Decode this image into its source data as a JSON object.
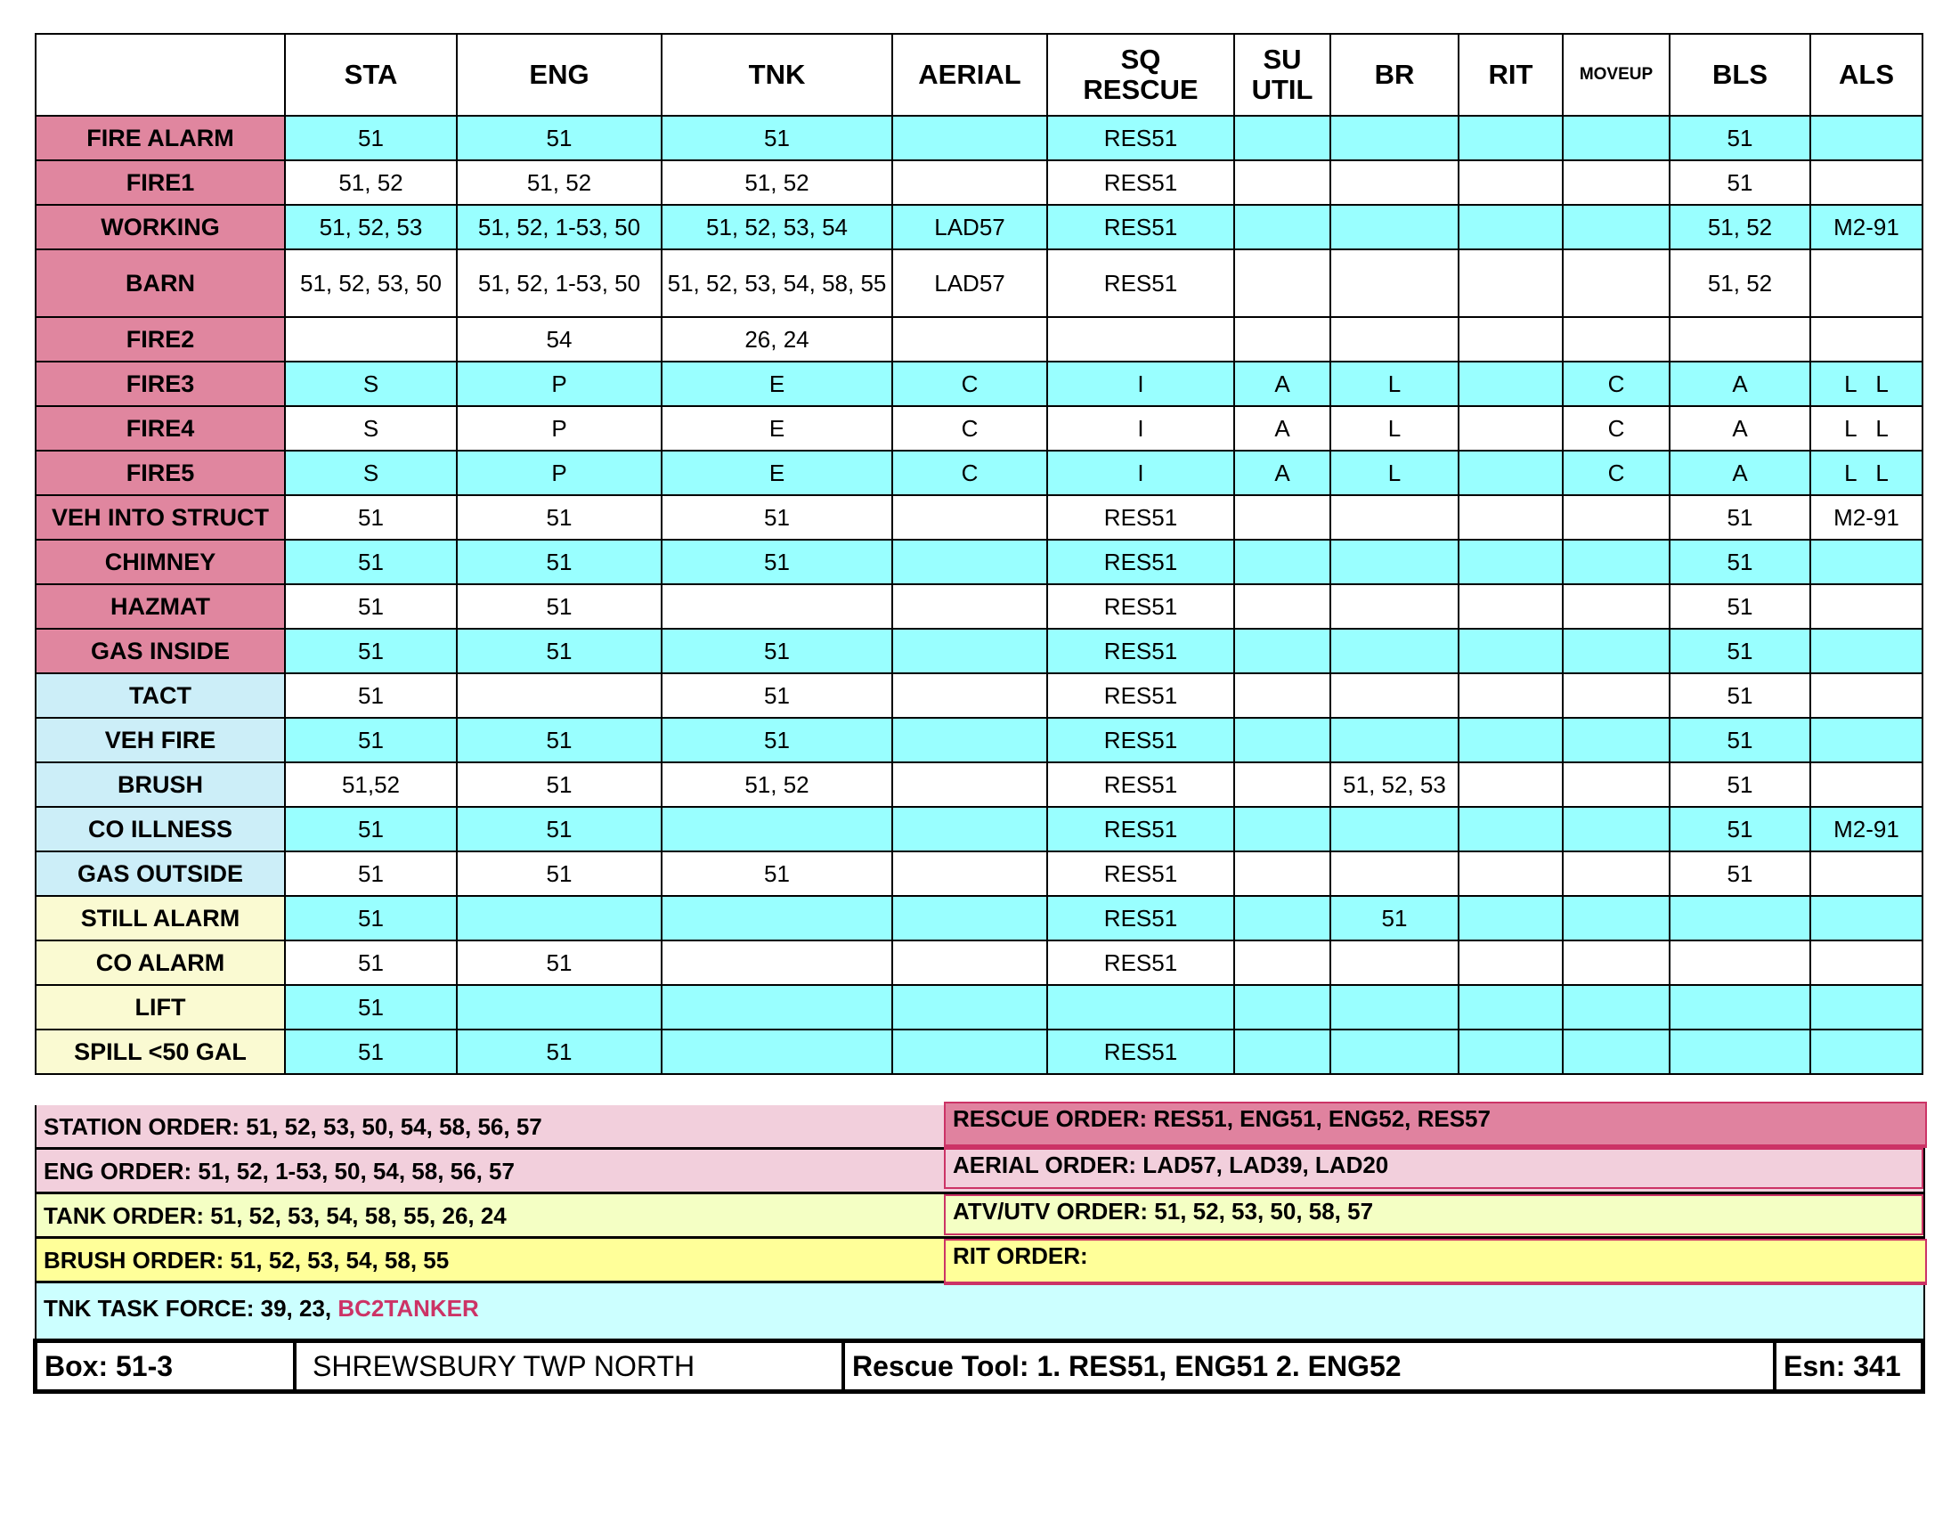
{
  "columns": [
    "",
    "STA",
    "ENG",
    "TNK",
    "AERIAL",
    "SQ\nRESCUE",
    "SU\nUTIL",
    "BR",
    "RIT",
    "MOVEUP",
    "BLS",
    "ALS"
  ],
  "colors": {
    "label_pink": "#e0869f",
    "label_blue": "#cceef8",
    "label_yellow": "#fafad2",
    "row_cyan": "#99ffff",
    "accent_red": "#cc3366"
  },
  "rows": [
    {
      "label": "FIRE ALARM",
      "cat": "pink",
      "bg": "cyan",
      "cells": [
        "51",
        "51",
        "51",
        "",
        "RES51",
        "",
        "",
        "",
        "",
        "51",
        ""
      ]
    },
    {
      "label": "FIRE1",
      "cat": "pink",
      "bg": "white",
      "cells": [
        "51, 52",
        "51, 52",
        "51, 52",
        "",
        "RES51",
        "",
        "",
        "",
        "",
        "51",
        ""
      ]
    },
    {
      "label": "WORKING",
      "cat": "pink",
      "bg": "cyan",
      "cells": [
        "51, 52, 53",
        "51, 52, 1-53, 50",
        "51, 52, 53, 54",
        "LAD57",
        "RES51",
        "",
        "",
        "",
        "",
        "51, 52",
        "M2-91"
      ]
    },
    {
      "label": "BARN",
      "cat": "pink",
      "bg": "white",
      "tall": true,
      "cells": [
        "51, 52, 53, 50",
        "51, 52, 1-53, 50",
        "51, 52, 53, 54, 58, 55",
        "LAD57",
        "RES51",
        "",
        "",
        "",
        "",
        "51, 52",
        ""
      ]
    },
    {
      "label": "FIRE2",
      "cat": "pink",
      "bg": "white",
      "cells": [
        "",
        "54",
        "26, 24",
        "",
        "",
        "",
        "",
        "",
        "",
        "",
        ""
      ]
    },
    {
      "label": "FIRE3",
      "cat": "pink",
      "bg": "cyan",
      "cells": [
        "S",
        "P",
        "E",
        "C",
        "I",
        "A",
        "L",
        "",
        "C",
        "A",
        "L   L"
      ]
    },
    {
      "label": "FIRE4",
      "cat": "pink",
      "bg": "white",
      "cells": [
        "S",
        "P",
        "E",
        "C",
        "I",
        "A",
        "L",
        "",
        "C",
        "A",
        "L   L"
      ]
    },
    {
      "label": "FIRE5",
      "cat": "pink",
      "bg": "cyan",
      "cells": [
        "S",
        "P",
        "E",
        "C",
        "I",
        "A",
        "L",
        "",
        "C",
        "A",
        "L   L"
      ]
    },
    {
      "label": "VEH INTO STRUCT",
      "cat": "pink",
      "bg": "white",
      "cells": [
        "51",
        "51",
        "51",
        "",
        "RES51",
        "",
        "",
        "",
        "",
        "51",
        "M2-91"
      ]
    },
    {
      "label": "CHIMNEY",
      "cat": "pink",
      "bg": "cyan",
      "cells": [
        "51",
        "51",
        "51",
        "",
        "RES51",
        "",
        "",
        "",
        "",
        "51",
        ""
      ]
    },
    {
      "label": "HAZMAT",
      "cat": "pink",
      "bg": "white",
      "cells": [
        "51",
        "51",
        "",
        "",
        "RES51",
        "",
        "",
        "",
        "",
        "51",
        ""
      ]
    },
    {
      "label": "GAS INSIDE",
      "cat": "pink",
      "bg": "cyan",
      "cells": [
        "51",
        "51",
        "51",
        "",
        "RES51",
        "",
        "",
        "",
        "",
        "51",
        ""
      ]
    },
    {
      "label": "TACT",
      "cat": "blue",
      "bg": "white",
      "cells": [
        "51",
        "",
        "51",
        "",
        "RES51",
        "",
        "",
        "",
        "",
        "51",
        ""
      ]
    },
    {
      "label": "VEH FIRE",
      "cat": "blue",
      "bg": "cyan",
      "cells": [
        "51",
        "51",
        "51",
        "",
        "RES51",
        "",
        "",
        "",
        "",
        "51",
        ""
      ]
    },
    {
      "label": "BRUSH",
      "cat": "blue",
      "bg": "white",
      "cells": [
        "51,52",
        "51",
        "51, 52",
        "",
        "RES51",
        "",
        "51, 52, 53",
        "",
        "",
        "51",
        ""
      ]
    },
    {
      "label": "CO ILLNESS",
      "cat": "blue",
      "bg": "cyan",
      "cells": [
        "51",
        "51",
        "",
        "",
        "RES51",
        "",
        "",
        "",
        "",
        "51",
        "M2-91"
      ]
    },
    {
      "label": "GAS OUTSIDE",
      "cat": "blue",
      "bg": "white",
      "cells": [
        "51",
        "51",
        "51",
        "",
        "RES51",
        "",
        "",
        "",
        "",
        "51",
        ""
      ]
    },
    {
      "label": "STILL ALARM",
      "cat": "yellow",
      "bg": "cyan",
      "cells": [
        "51",
        "",
        "",
        "",
        "RES51",
        "",
        "51",
        "",
        "",
        "",
        ""
      ]
    },
    {
      "label": "CO ALARM",
      "cat": "yellow",
      "bg": "white",
      "cells": [
        "51",
        "51",
        "",
        "",
        "RES51",
        "",
        "",
        "",
        "",
        "",
        ""
      ]
    },
    {
      "label": "LIFT",
      "cat": "yellow",
      "bg": "cyan",
      "cells": [
        "51",
        "",
        "",
        "",
        "",
        "",
        "",
        "",
        "",
        "",
        ""
      ]
    },
    {
      "label": "SPILL <50 GAL",
      "cat": "yellow",
      "bg": "cyan",
      "cells": [
        "51",
        "51",
        "",
        "",
        "RES51",
        "",
        "",
        "",
        "",
        "",
        ""
      ]
    }
  ],
  "orders": {
    "station": "STATION ORDER: 51, 52, 53, 50, 54, 58, 56, 57",
    "eng": "ENG ORDER: 51, 52, 1-53, 50, 54, 58, 56, 57",
    "tank": "TANK ORDER: 51, 52, 53, 54, 58, 55, 26, 24",
    "brush": "BRUSH ORDER: 51, 52, 53, 54, 58, 55",
    "rescue": "RESCUE ORDER: RES51, ENG51, ENG52, RES57",
    "aerial": "AERIAL ORDER: LAD57, LAD39, LAD20",
    "atv": "ATV/UTV ORDER: 51, 52, 53, 50, 58, 57",
    "rit": "RIT ORDER:",
    "task_force_label": "TNK TASK FORCE: 39, 23, ",
    "task_force_highlight": "BC2TANKER"
  },
  "footer": {
    "box": "Box: 51-3",
    "area": "SHREWSBURY TWP NORTH",
    "rescue_tool": "Rescue Tool: 1. RES51, ENG51   2. ENG52",
    "esn": "Esn: 341"
  }
}
